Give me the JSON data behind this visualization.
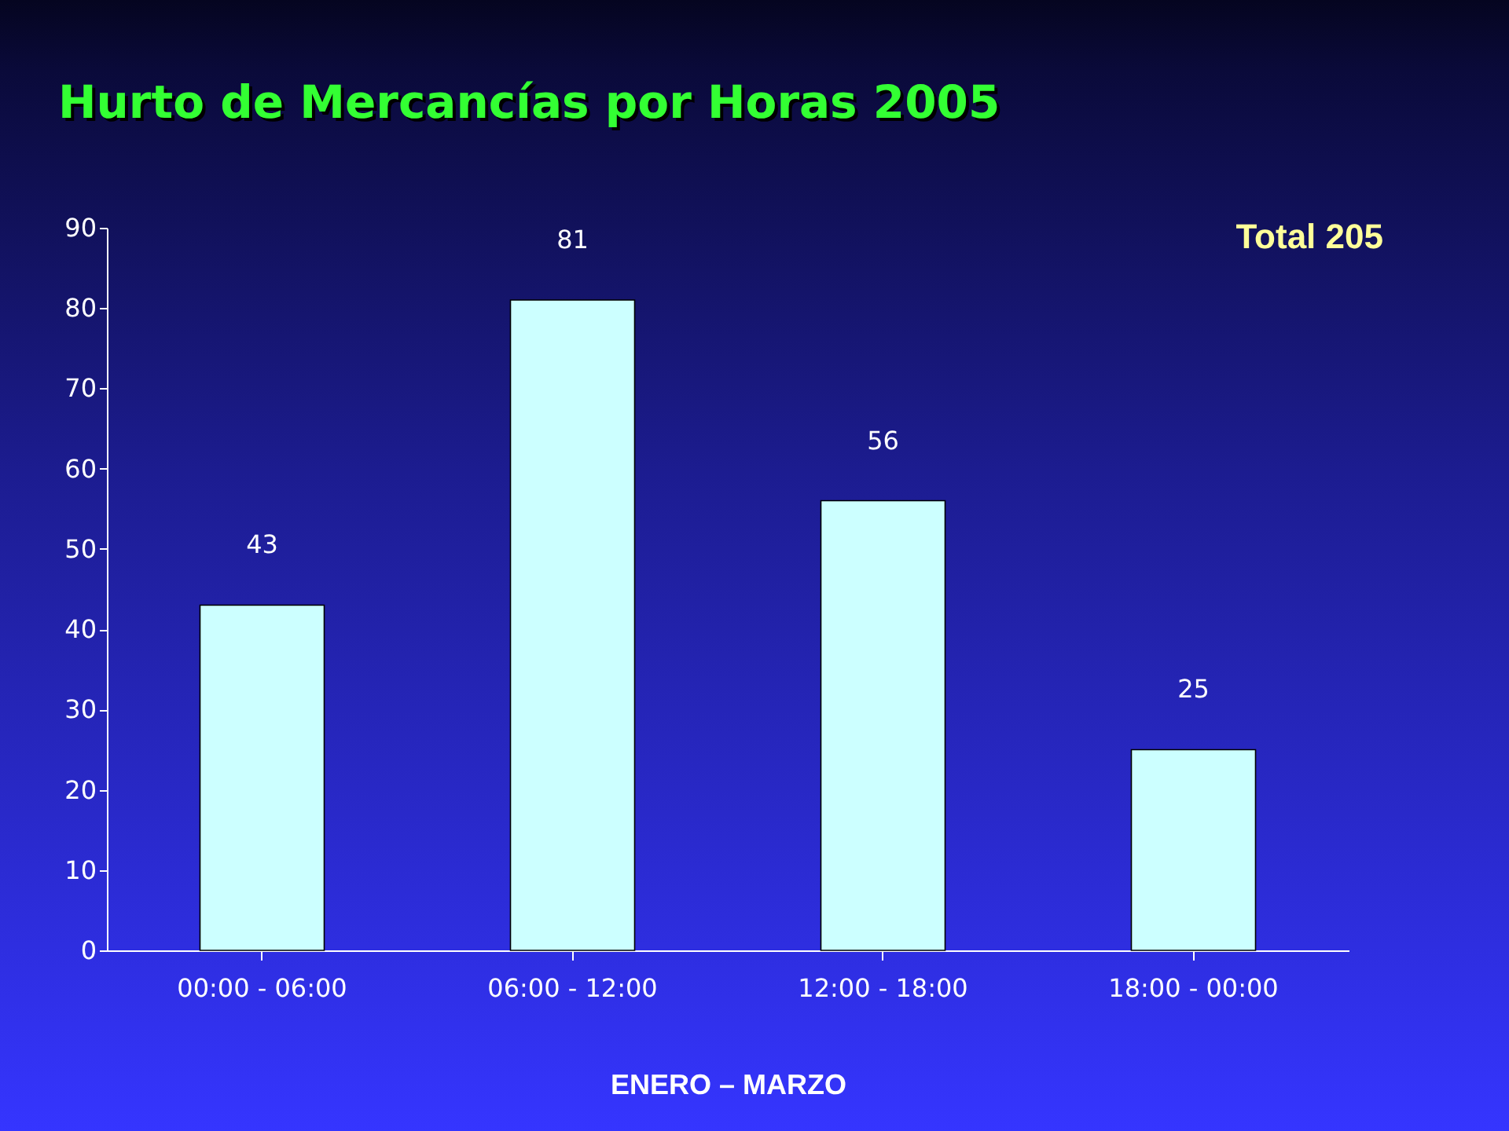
{
  "chart_data": {
    "type": "bar",
    "title": "Hurto de Mercancías por Horas 2005",
    "xlabel": "ENERO – MARZO",
    "categories": [
      "00:00 - 06:00",
      "06:00 - 12:00",
      "12:00 - 18:00",
      "18:00 - 00:00"
    ],
    "values": [
      43,
      81,
      56,
      25
    ],
    "color": "#ccffff",
    "ylim": [
      0,
      90
    ],
    "yticks": [
      0,
      10,
      20,
      30,
      40,
      50,
      60,
      70,
      80,
      90
    ],
    "grid": false,
    "data_labels": true,
    "annotations": [
      "Total 205"
    ]
  }
}
